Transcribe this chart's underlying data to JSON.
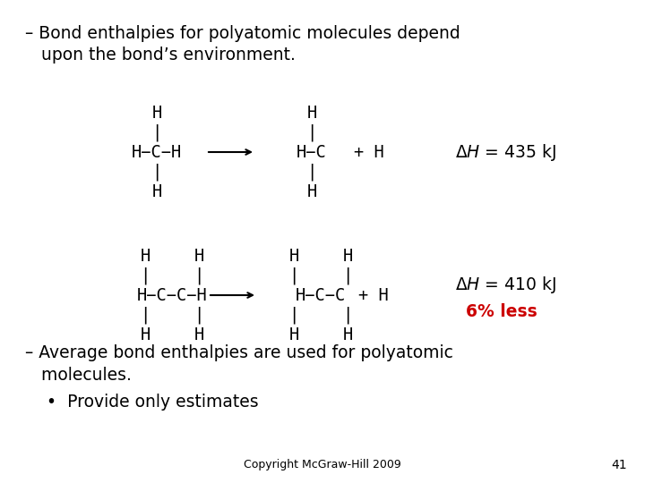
{
  "bg_color": "#ffffff",
  "text_color": "#000000",
  "red_color": "#cc0000",
  "bullet1_line1": "– Bond enthalpies for polyatomic molecules depend",
  "bullet1_line2": "   upon the bond’s environment.",
  "bullet2_line1": "– Average bond enthalpies are used for polyatomic",
  "bullet2_line2": "   molecules.",
  "bullet3": "•  Provide only estimates",
  "copyright": "Copyright McGraw-Hill 2009",
  "page": "41",
  "six_pct": "6% less",
  "font_size_main": 13.5,
  "font_size_chem": 13.5,
  "font_size_copyright": 9
}
